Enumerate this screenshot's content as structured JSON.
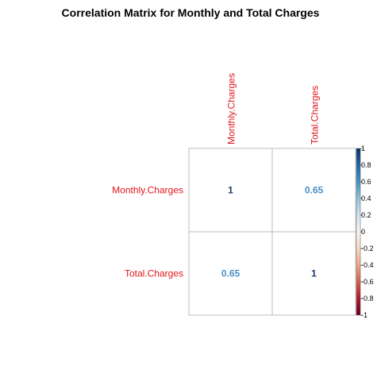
{
  "chart_data": {
    "type": "heatmap",
    "title": "Correlation Matrix for Monthly and Total Charges",
    "variables": [
      "Monthly.Charges",
      "Total.Charges"
    ],
    "matrix": [
      [
        1,
        0.65
      ],
      [
        0.65,
        1
      ]
    ],
    "cell_labels": [
      [
        "1",
        "0.65"
      ],
      [
        "0.65",
        "1"
      ]
    ],
    "colorbar": {
      "range": [
        -1,
        1
      ],
      "tick_labels": [
        "1",
        "0.8",
        "0.6",
        "0.4",
        "0.2",
        "0",
        "-0.2",
        "-0.4",
        "-0.6",
        "-0.8",
        "-1"
      ],
      "tick_values": [
        1,
        0.8,
        0.6,
        0.4,
        0.2,
        0,
        -0.2,
        -0.4,
        -0.6,
        -0.8,
        -1
      ]
    },
    "grid": true,
    "colors": {
      "label": "#e0151c",
      "value_1": "#1b3a6b",
      "value_065": "#4a8fc6",
      "grid": "#bdbdbd"
    }
  }
}
